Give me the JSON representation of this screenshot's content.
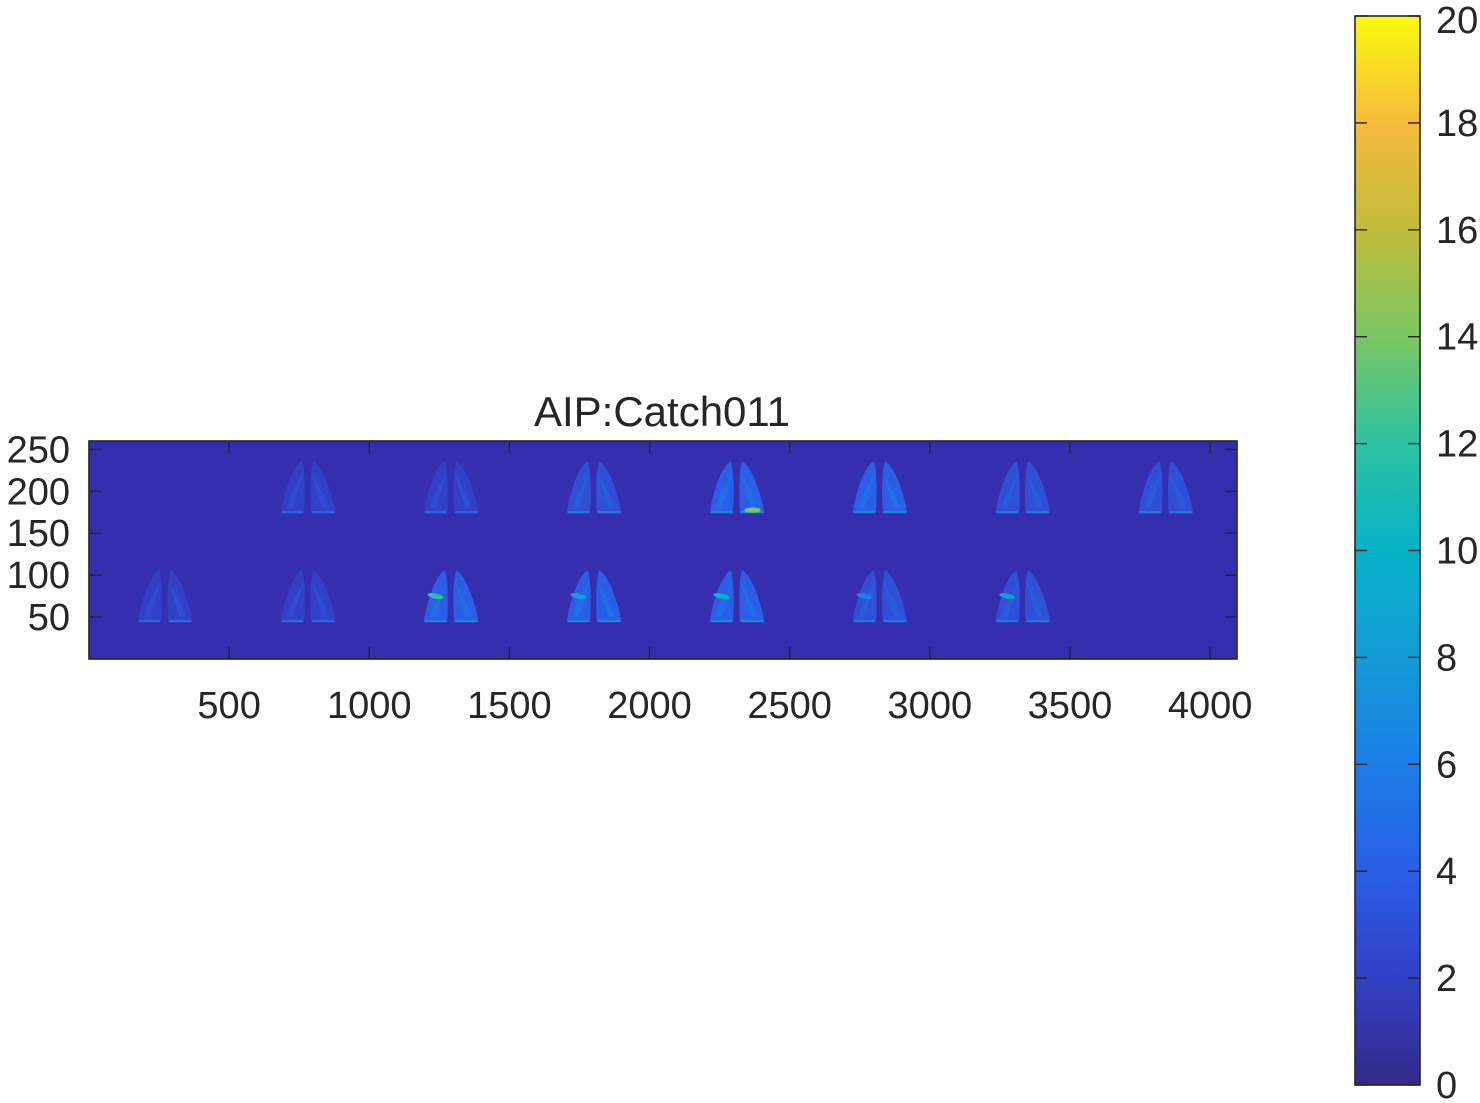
{
  "chart_data": {
    "type": "heatmap",
    "title": "AIP:Catch011",
    "xlabel": "",
    "ylabel": "",
    "x_ticks": [
      500,
      1000,
      1500,
      2000,
      2500,
      3000,
      3500,
      4000
    ],
    "y_ticks": [
      250,
      200,
      150,
      100,
      50
    ],
    "xlim": [
      0,
      4096
    ],
    "ylim": [
      0,
      260
    ],
    "y_reversed": false,
    "grid": false,
    "colormap": "parula",
    "background_value": 0.5,
    "colorbar": {
      "ticks": [
        0,
        2,
        4,
        6,
        8,
        10,
        12,
        14,
        16,
        18,
        20
      ],
      "range": [
        0,
        20
      ],
      "location": "right"
    },
    "tiles": [
      {
        "row": 0,
        "x_center": 270,
        "y_center": 75,
        "intensity": 2
      },
      {
        "row": 0,
        "x_center": 780,
        "y_center": 75,
        "intensity": 2
      },
      {
        "row": 0,
        "x_center": 1290,
        "y_center": 75,
        "intensity": 4,
        "hotspot": 12
      },
      {
        "row": 0,
        "x_center": 1800,
        "y_center": 75,
        "intensity": 4,
        "hotspot": 8
      },
      {
        "row": 0,
        "x_center": 2310,
        "y_center": 75,
        "intensity": 4,
        "hotspot": 10
      },
      {
        "row": 0,
        "x_center": 2820,
        "y_center": 75,
        "intensity": 3,
        "hotspot": 6
      },
      {
        "row": 0,
        "x_center": 3330,
        "y_center": 75,
        "intensity": 3,
        "hotspot": 8
      },
      {
        "row": 1,
        "x_center": 780,
        "y_center": 205,
        "intensity": 2
      },
      {
        "row": 1,
        "x_center": 1290,
        "y_center": 205,
        "intensity": 2
      },
      {
        "row": 1,
        "x_center": 1800,
        "y_center": 205,
        "intensity": 3
      },
      {
        "row": 1,
        "x_center": 2310,
        "y_center": 205,
        "intensity": 4,
        "hotspot": 14
      },
      {
        "row": 1,
        "x_center": 2820,
        "y_center": 205,
        "intensity": 4
      },
      {
        "row": 1,
        "x_center": 3330,
        "y_center": 205,
        "intensity": 3
      },
      {
        "row": 1,
        "x_center": 3840,
        "y_center": 205,
        "intensity": 3
      }
    ]
  }
}
